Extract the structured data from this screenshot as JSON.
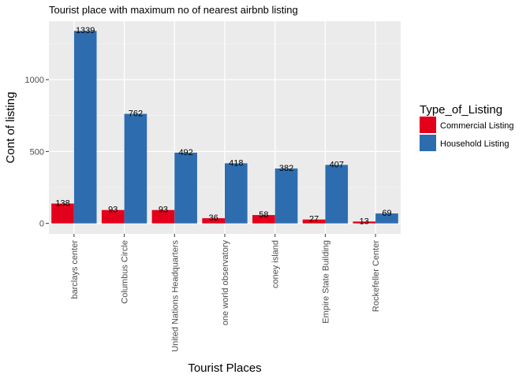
{
  "chart_data": {
    "type": "bar",
    "title": "Tourist place with maximum no of nearest airbnb listing",
    "xlabel": "Tourist Places",
    "ylabel": "Cont of listing",
    "categories": [
      "barclays center",
      "Columbus Circle",
      "United Nations Headquarters",
      "one world observatory",
      "coney island",
      "Empire State Building",
      "Rockefeller Center"
    ],
    "series": [
      {
        "name": "Commercial Listing",
        "color": "#E3001B",
        "values": [
          138,
          93,
          93,
          36,
          58,
          27,
          13
        ]
      },
      {
        "name": "Household Listing",
        "color": "#2D6DAF",
        "values": [
          1339,
          762,
          492,
          418,
          382,
          407,
          69
        ]
      }
    ],
    "ylim": [
      -73,
      1406
    ],
    "yticks": [
      0,
      500,
      1000
    ],
    "grid": true,
    "legend": {
      "title": "Type_of_Listing",
      "position": "right"
    }
  }
}
